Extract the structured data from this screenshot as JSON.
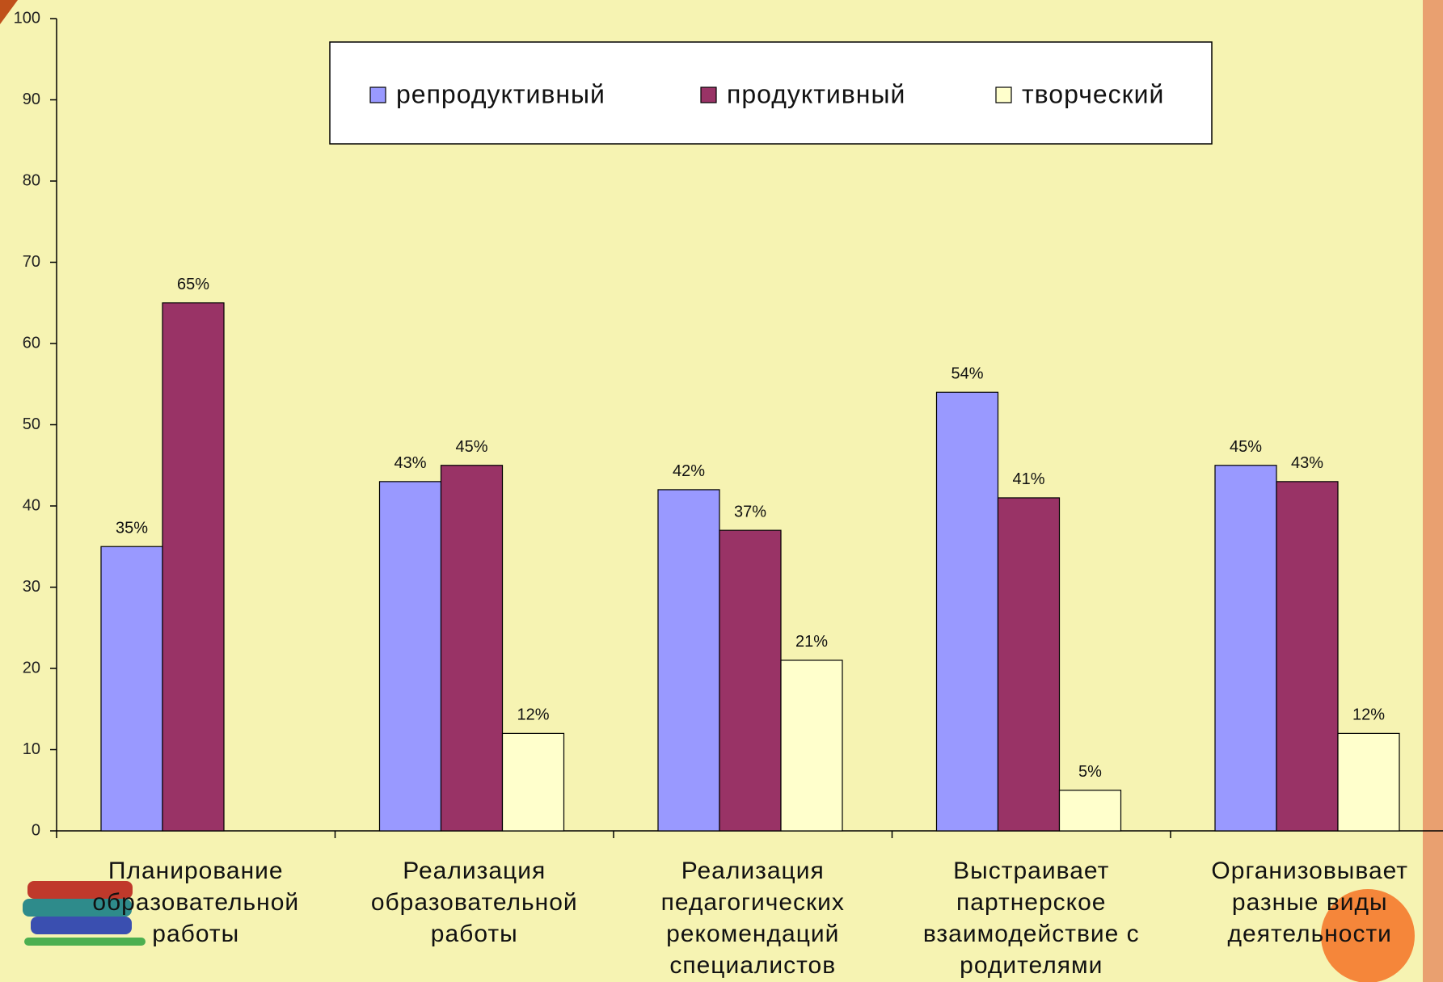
{
  "chart_data": {
    "type": "bar",
    "categories": [
      "Планирование образовательной работы",
      "Реализация образовательной работы",
      "Реализация педагогических рекомендаций специалистов",
      "Выстраивает партнерское взаимодействие с родителями",
      "Организовывает разные виды деятельности"
    ],
    "series": [
      {
        "name": "репродуктивный",
        "color": "#9999ff",
        "values": [
          35,
          43,
          42,
          54,
          45
        ],
        "value_labels": [
          "35%",
          "43%",
          "42%",
          "54%",
          "45%"
        ]
      },
      {
        "name": "продуктивный",
        "color": "#993366",
        "values": [
          65,
          45,
          37,
          41,
          43
        ],
        "value_labels": [
          "65%",
          "45%",
          "37%",
          "41%",
          "43%"
        ]
      },
      {
        "name": "творческий",
        "color": "#ffffcc",
        "values": [
          null,
          12,
          21,
          5,
          12
        ],
        "value_labels": [
          null,
          "12%",
          "21%",
          "5%",
          "12%"
        ]
      }
    ],
    "ylim": [
      0,
      100
    ],
    "yticks": [
      0,
      10,
      20,
      30,
      40,
      50,
      60,
      70,
      80,
      90,
      100
    ],
    "grid": false,
    "legend": "top"
  }
}
